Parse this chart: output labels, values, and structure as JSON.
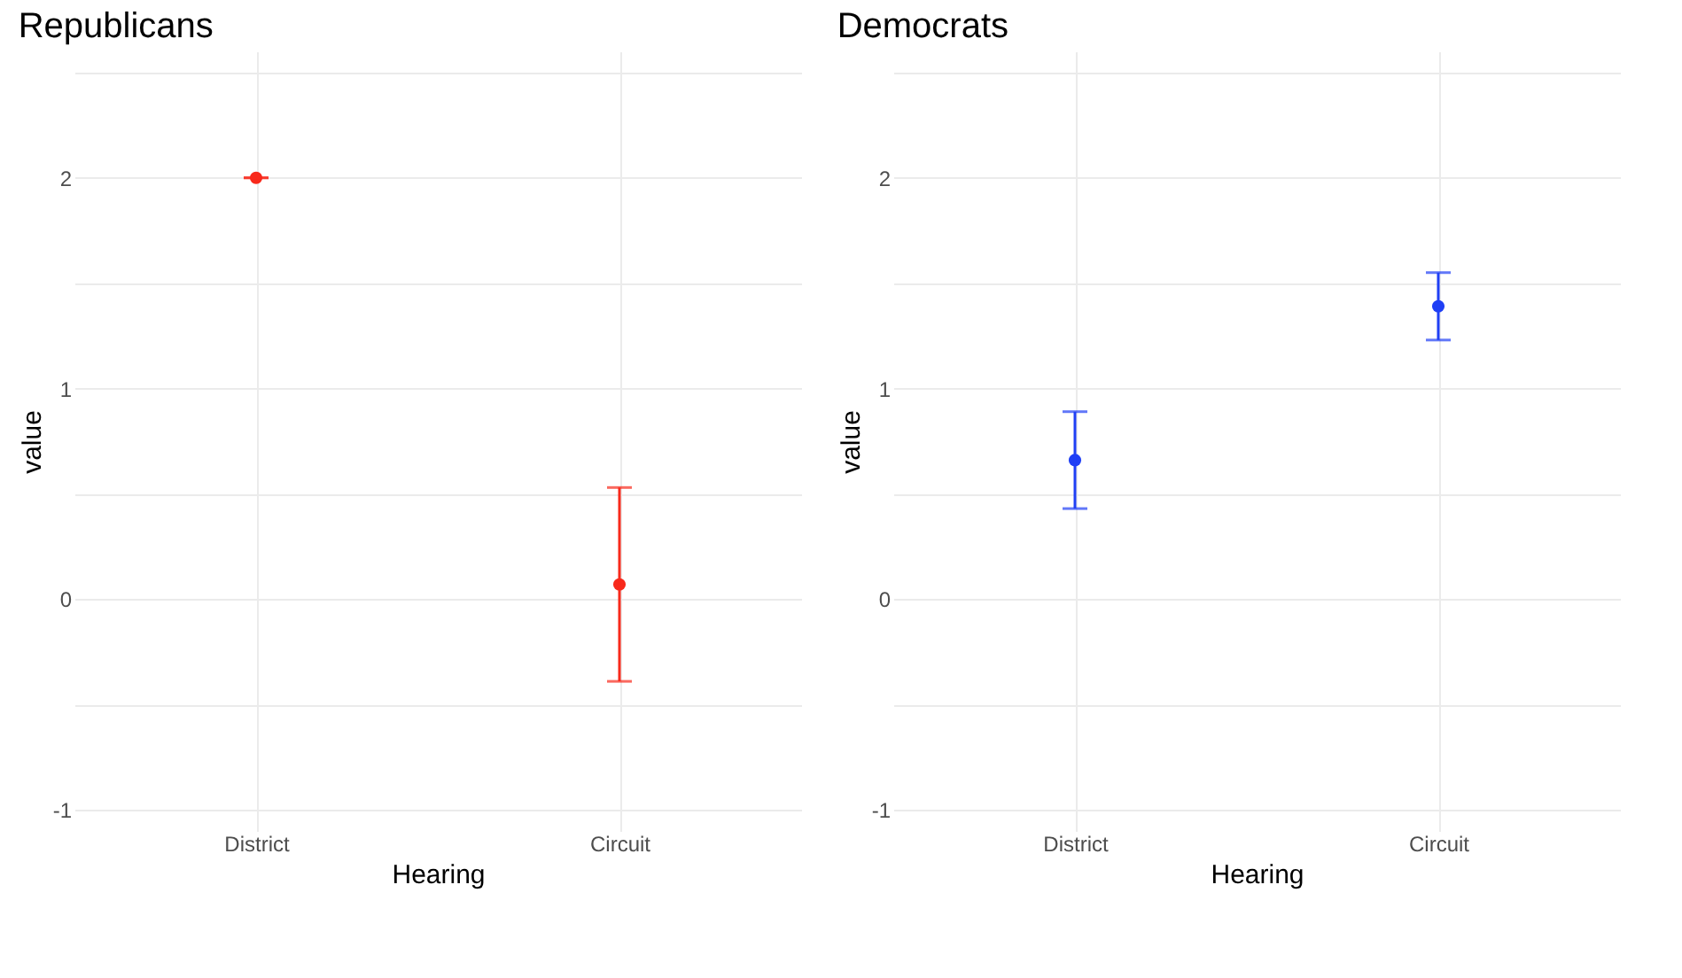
{
  "chart_data": [
    {
      "type": "scatter",
      "title": "Republicans",
      "xlabel": "Hearing",
      "ylabel": "value",
      "categories": [
        "District",
        "Circuit"
      ],
      "series": [
        {
          "color": "#f8291b",
          "values": [
            2.0,
            0.07
          ],
          "errors": [
            0,
            0.46
          ]
        }
      ],
      "ylim": [
        -1.1,
        2.6
      ],
      "yticks": [
        {
          "value": -0.5,
          "label": null
        },
        -1,
        0,
        {
          "value": 0.5,
          "label": null
        },
        1,
        {
          "value": 1.5,
          "label": null
        },
        2,
        {
          "value": 2.5,
          "label": null
        }
      ],
      "grid": true,
      "marker": "circle"
    },
    {
      "type": "scatter",
      "title": "Democrats",
      "xlabel": "Hearing",
      "ylabel": "value",
      "categories": [
        "District",
        "Circuit"
      ],
      "series": [
        {
          "color": "#1f3ff5",
          "values": [
            0.66,
            1.39
          ],
          "errors": [
            0.23,
            0.16
          ]
        }
      ],
      "ylim": [
        -1.1,
        2.6
      ],
      "yticks": [
        {
          "value": -0.5,
          "label": null
        },
        -1,
        0,
        {
          "value": 0.5,
          "label": null
        },
        1,
        {
          "value": 1.5,
          "label": null
        },
        2,
        {
          "value": 2.5,
          "label": null
        }
      ],
      "grid": true,
      "marker": "circle"
    }
  ]
}
